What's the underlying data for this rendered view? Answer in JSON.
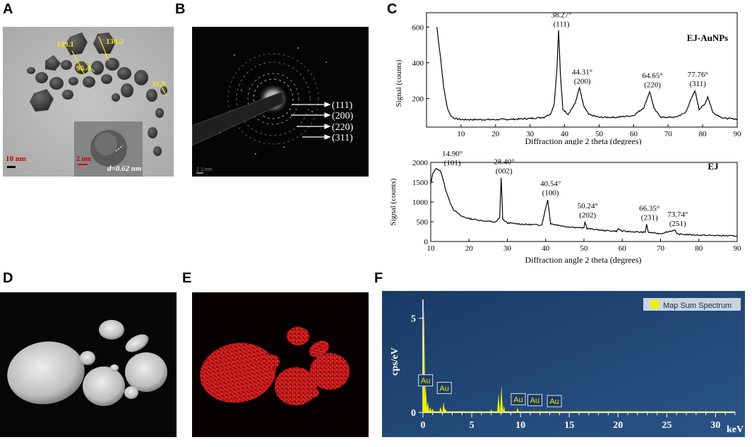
{
  "panels": {
    "A": {
      "letter": "A",
      "measurements": [
        "149.1",
        "136.2",
        "96.4",
        "31.9"
      ],
      "scalebar_main": "10 nm",
      "scalebar_inset": "2 nm",
      "d_spacing": "d=0.62 nm"
    },
    "B": {
      "letter": "B",
      "planes": [
        "(111)",
        "(200)",
        "(220)",
        "(311)"
      ],
      "scalebar": "2 1/nm"
    },
    "C": {
      "letter": "C"
    },
    "D": {
      "letter": "D"
    },
    "E": {
      "letter": "E"
    },
    "F": {
      "letter": "F"
    }
  },
  "colors": {
    "xrd_line": "#000000",
    "eds_background": "#1e3f6e",
    "eds_bar": "#f0f000",
    "map_red": "#e01e1e",
    "measure_yellow": "#f5e616"
  },
  "chart_data": [
    {
      "id": "C-top",
      "type": "line",
      "title": "EJ-AuNPs",
      "xlabel": "Diffraction angle 2 theta (degrees)",
      "ylabel": "Signal (counts)",
      "xlim": [
        0,
        90
      ],
      "ylim": [
        40,
        680
      ],
      "xticks": [
        10,
        20,
        30,
        40,
        50,
        60,
        70,
        80,
        90
      ],
      "yticks": [
        200,
        400,
        600
      ],
      "grid": false,
      "x": [
        3,
        4,
        5,
        6,
        7,
        8,
        10,
        15,
        20,
        25,
        30,
        34,
        36,
        37,
        37.8,
        38.27,
        38.8,
        39.5,
        41,
        43,
        44.31,
        45.5,
        47,
        50,
        55,
        60,
        63,
        64.65,
        66,
        68,
        72,
        75,
        77.76,
        79,
        80.5,
        81.5,
        83,
        86,
        90
      ],
      "values": [
        600,
        440,
        260,
        150,
        105,
        90,
        82,
        82,
        82,
        84,
        88,
        95,
        115,
        170,
        370,
        580,
        330,
        140,
        112,
        170,
        260,
        160,
        110,
        95,
        95,
        105,
        150,
        240,
        140,
        95,
        95,
        120,
        245,
        140,
        165,
        210,
        120,
        90,
        85
      ],
      "annotations": [
        {
          "label": "38.27°",
          "hkl": "(111)",
          "x": 38.27,
          "y": 580
        },
        {
          "label": "44.31°",
          "hkl": "(200)",
          "x": 44.31,
          "y": 260
        },
        {
          "label": "64.65°",
          "hkl": "(220)",
          "x": 64.65,
          "y": 240
        },
        {
          "label": "77.76°",
          "hkl": "(311)",
          "x": 77.76,
          "y": 245
        }
      ]
    },
    {
      "id": "C-bottom",
      "type": "line",
      "title": "EJ",
      "xlabel": "Diffraction angle 2 theta (degrees)",
      "ylabel": "Signal (counts)",
      "xlim": [
        10,
        90
      ],
      "ylim": [
        0,
        2000
      ],
      "xticks": [
        10,
        20,
        30,
        40,
        50,
        60,
        70,
        80,
        90
      ],
      "yticks": [
        0,
        500,
        1000,
        1500,
        2000
      ],
      "grid": false,
      "x": [
        10,
        10.5,
        11,
        11.5,
        12,
        12.5,
        13,
        14,
        15,
        16,
        18,
        20,
        24,
        27,
        28,
        28.4,
        28.8,
        30,
        35,
        39,
        40.54,
        41.3,
        45,
        50,
        50.24,
        50.8,
        55,
        58.5,
        59,
        60,
        66,
        66.35,
        66.8,
        70,
        73.74,
        74.2,
        80,
        85,
        90
      ],
      "values": [
        1450,
        1700,
        1800,
        1850,
        1820,
        1780,
        1650,
        1280,
        1000,
        800,
        640,
        580,
        520,
        490,
        600,
        1620,
        560,
        470,
        430,
        420,
        1060,
        450,
        380,
        340,
        500,
        330,
        280,
        260,
        320,
        260,
        230,
        440,
        230,
        200,
        290,
        190,
        160,
        150,
        140
      ],
      "annotations": [
        {
          "label": "14.90°",
          "hkl": "(101)",
          "x": 14.9,
          "y": 1820
        },
        {
          "label": "28.40°",
          "hkl": "(002)",
          "x": 28.4,
          "y": 1620
        },
        {
          "label": "40.54°",
          "hkl": "(100)",
          "x": 40.54,
          "y": 1060
        },
        {
          "label": "50.24°",
          "hkl": "(202)",
          "x": 50.24,
          "y": 500
        },
        {
          "label": "66.35°",
          "hkl": "(231)",
          "x": 66.35,
          "y": 440
        },
        {
          "label": "73.74°",
          "hkl": "(251)",
          "x": 73.74,
          "y": 290
        }
      ]
    },
    {
      "id": "F",
      "type": "bar",
      "title": "",
      "xlabel": "keV",
      "ylabel": "cps/eV",
      "legend": "Map Sum Spectrum",
      "legend_position": "top-right",
      "xlim": [
        0,
        32
      ],
      "ylim": [
        0,
        6
      ],
      "xticks": [
        0,
        5,
        10,
        15,
        20,
        25,
        30
      ],
      "yticks": [
        0,
        5
      ],
      "grid": false,
      "x": [
        0.1,
        0.28,
        0.5,
        0.75,
        1.0,
        1.8,
        2.12,
        2.3,
        7.0,
        7.75,
        8.05,
        8.3,
        9.7,
        11.4,
        13.4
      ],
      "values": [
        5.7,
        1.5,
        0.6,
        0.3,
        0.2,
        0.3,
        0.55,
        0.2,
        0.15,
        1.0,
        1.45,
        0.35,
        0.25,
        0.1,
        0.08
      ],
      "peak_labels": [
        {
          "label": "Au",
          "x": 0.2,
          "y": 1.4
        },
        {
          "label": "Au",
          "x": 2.12,
          "y": 1.0
        },
        {
          "label": "Au",
          "x": 9.7,
          "y": 0.4
        },
        {
          "label": "Au",
          "x": 11.4,
          "y": 0.35
        },
        {
          "label": "Au",
          "x": 13.4,
          "y": 0.3
        }
      ]
    }
  ]
}
